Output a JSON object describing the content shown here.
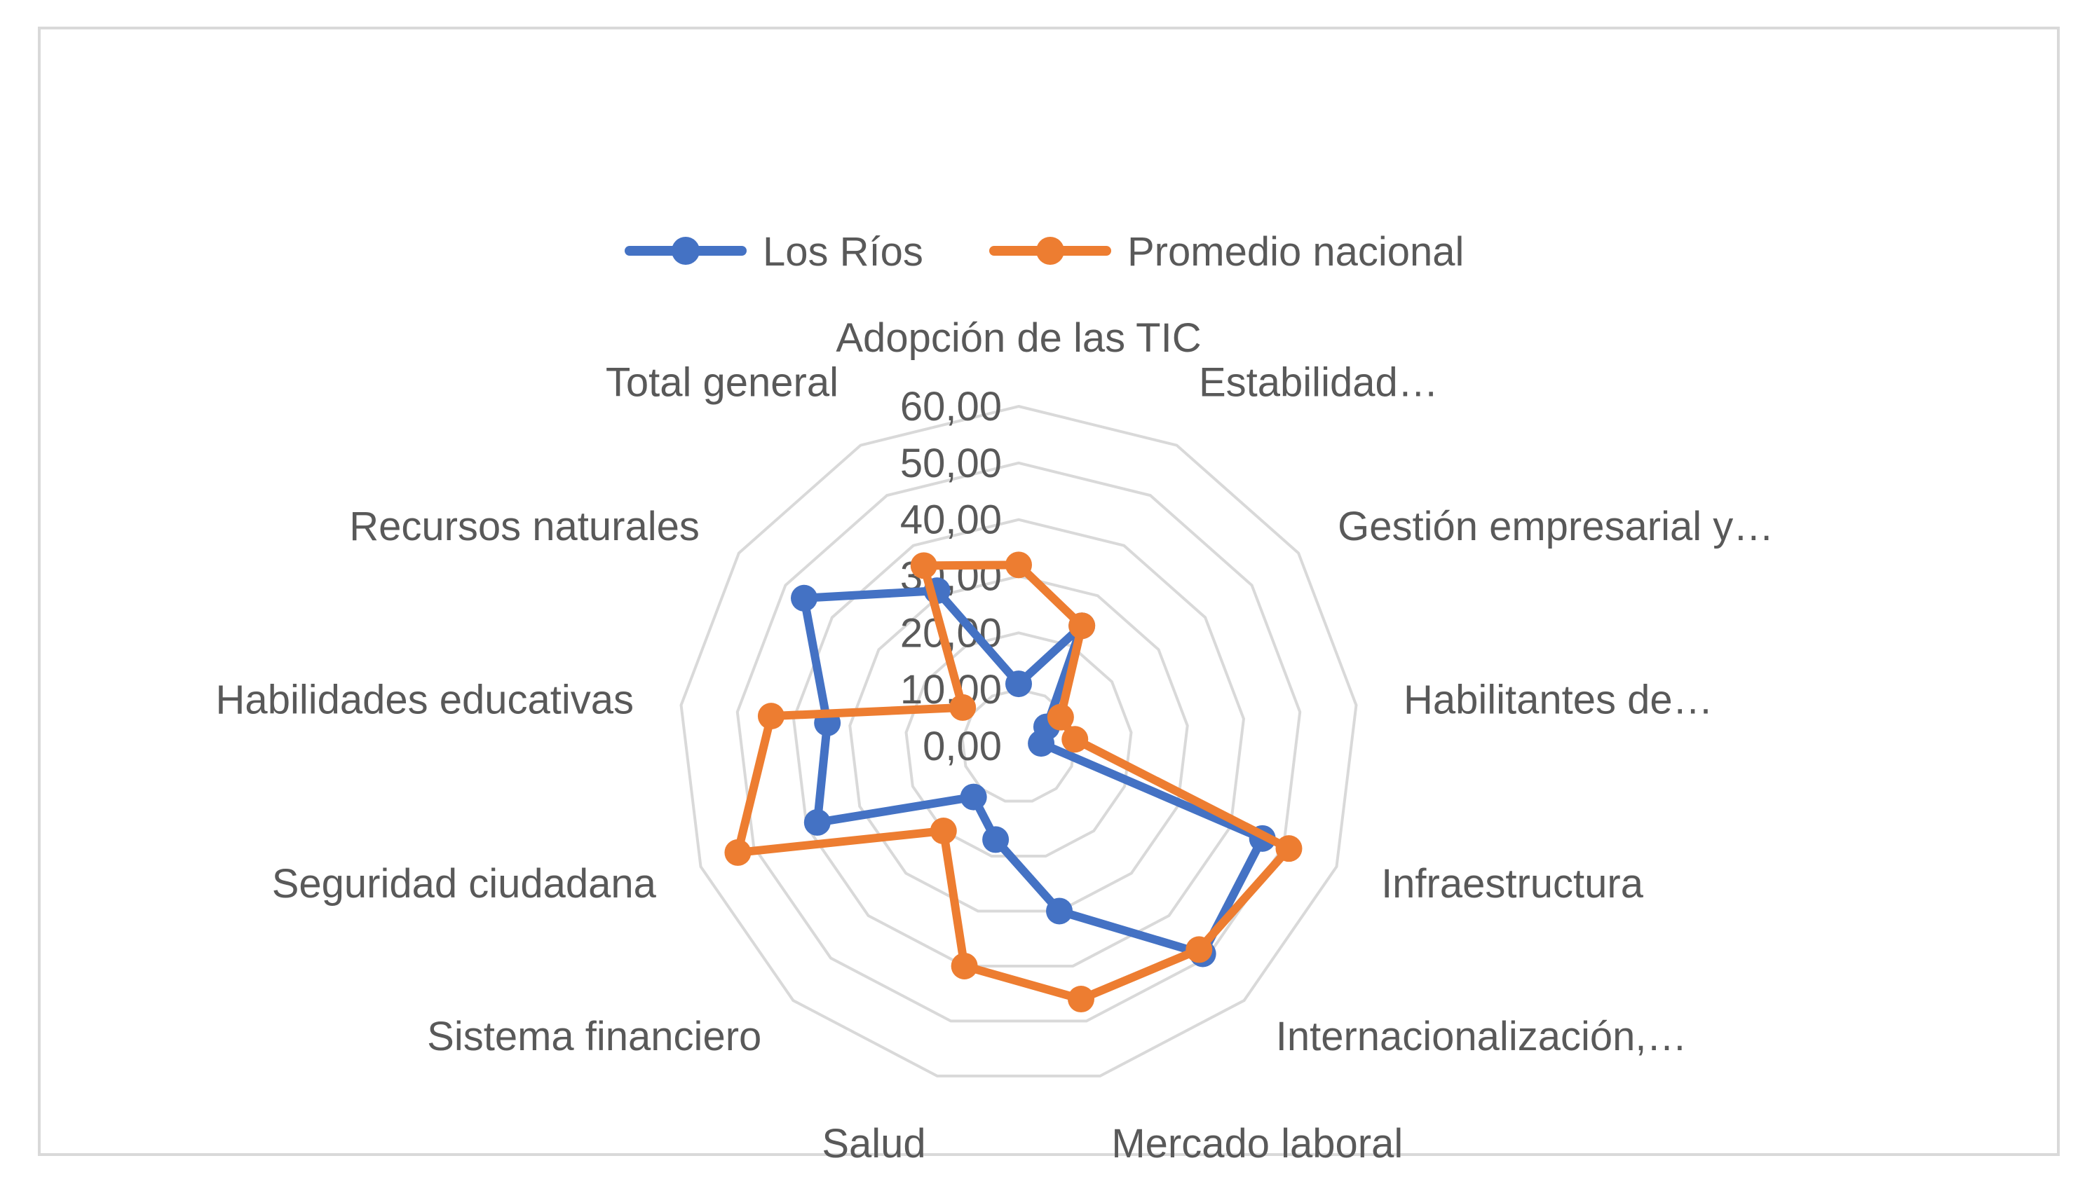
{
  "chart_data": {
    "type": "radar",
    "categories": [
      "Adopción de las TIC",
      "Estabilidad…",
      "Gestión empresarial y…",
      "Habilitantes de…",
      "Infraestructura",
      "Internacionalización,…",
      "Mercado laboral",
      "Salud",
      "Sistema financiero",
      "Seguridad ciudadana",
      "Habilidades educativas",
      "Recursos naturales",
      "Total general"
    ],
    "rlim": [
      0,
      60
    ],
    "ticks": [
      "0,00",
      "10,00",
      "20,00",
      "30,00",
      "40,00",
      "50,00",
      "60,00"
    ],
    "grid": true,
    "legend_position": "top",
    "series": [
      {
        "name": "Los Ríos",
        "color": "#4472c4",
        "values": [
          11,
          24,
          6,
          4,
          46,
          49,
          30,
          17,
          12,
          38,
          34,
          46,
          31
        ]
      },
      {
        "name": "Promedio nacional",
        "color": "#ed7d31",
        "values": [
          32,
          24,
          9,
          10,
          51,
          48,
          46,
          40,
          20,
          53,
          44,
          12,
          36
        ]
      }
    ]
  }
}
